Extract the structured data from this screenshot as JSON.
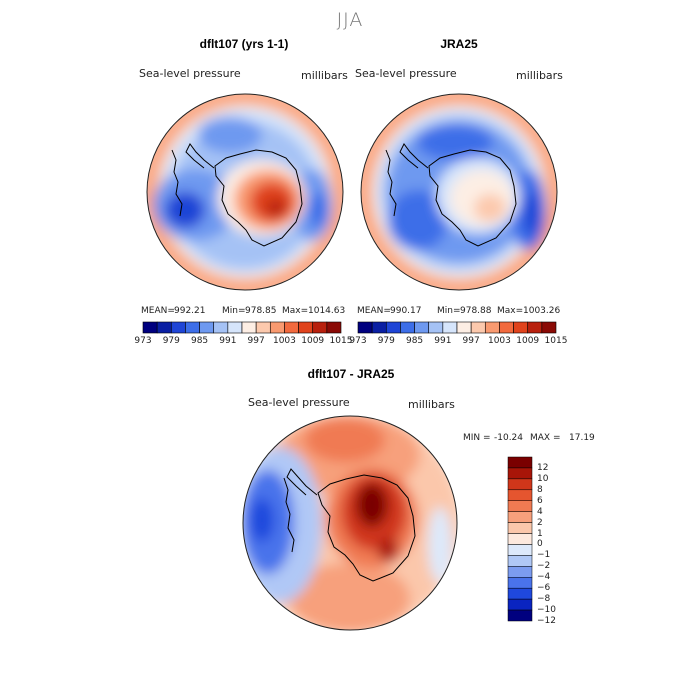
{
  "title": "JJA",
  "colors": {
    "palette13": [
      "#00007f",
      "#0a1fa3",
      "#1f45d6",
      "#3d6ee8",
      "#6e99f0",
      "#a5c2f5",
      "#d6e5fb",
      "#fdeee4",
      "#fcc9ad",
      "#f99a70",
      "#f26a3e",
      "#e0431c",
      "#b8200d",
      "#8a0a05"
    ],
    "diff": [
      "#00007f",
      "#0a24c0",
      "#1f48dd",
      "#4a73eb",
      "#7c9cf0",
      "#b0c8f6",
      "#dde9fb",
      "#fde9de",
      "#fbc7ab",
      "#f7a07c",
      "#f07a52",
      "#e5552f",
      "#d0361a",
      "#a81508",
      "#7a0000"
    ],
    "land_outline": "#000000"
  },
  "chart_data": [
    {
      "type": "heatmap",
      "projection": "south-polar-stereographic",
      "title": "dflt107 (yrs 1-1)",
      "field": "Sea-level pressure",
      "units": "millibars",
      "stats": {
        "mean_label": "MEAN=",
        "mean": 992.21,
        "min_label": "Min=",
        "min": 978.85,
        "max_label": "Max=",
        "max": 1014.63
      },
      "colorbar": {
        "orientation": "horizontal",
        "levels": [
          973,
          976,
          979,
          982,
          985,
          988,
          991,
          994,
          997,
          1000,
          1003,
          1006,
          1009,
          1012,
          1015
        ],
        "ticks": [
          "973",
          "979",
          "985",
          "991",
          "997",
          "1003",
          "1009",
          "1015"
        ]
      }
    },
    {
      "type": "heatmap",
      "projection": "south-polar-stereographic",
      "title": "JRA25",
      "field": "Sea-level pressure",
      "units": "millibars",
      "stats": {
        "mean_label": "MEAN=",
        "mean": 990.17,
        "min_label": "Min=",
        "min": 978.88,
        "max_label": "Max=",
        "max": 1003.26
      },
      "colorbar": {
        "orientation": "horizontal",
        "levels": [
          973,
          976,
          979,
          982,
          985,
          988,
          991,
          994,
          997,
          1000,
          1003,
          1006,
          1009,
          1012,
          1015
        ],
        "ticks": [
          "973",
          "979",
          "985",
          "991",
          "997",
          "1003",
          "1009",
          "1015"
        ]
      }
    },
    {
      "type": "heatmap",
      "projection": "south-polar-stereographic",
      "title": "dflt107 - JRA25",
      "field": "Sea-level pressure",
      "units": "millibars",
      "stats": {
        "min_label": "MIN =",
        "min": -10.24,
        "max_label": "MAX =",
        "max": 17.19
      },
      "colorbar": {
        "orientation": "vertical",
        "levels": [
          -12,
          -10,
          -8,
          -6,
          -4,
          -2,
          -1,
          0,
          1,
          2,
          4,
          6,
          8,
          10,
          12
        ],
        "ticks": [
          "12",
          "10",
          "8",
          "6",
          "4",
          "2",
          "1",
          "0",
          "−1",
          "−2",
          "−4",
          "−6",
          "−8",
          "−10",
          "−12"
        ]
      }
    }
  ]
}
